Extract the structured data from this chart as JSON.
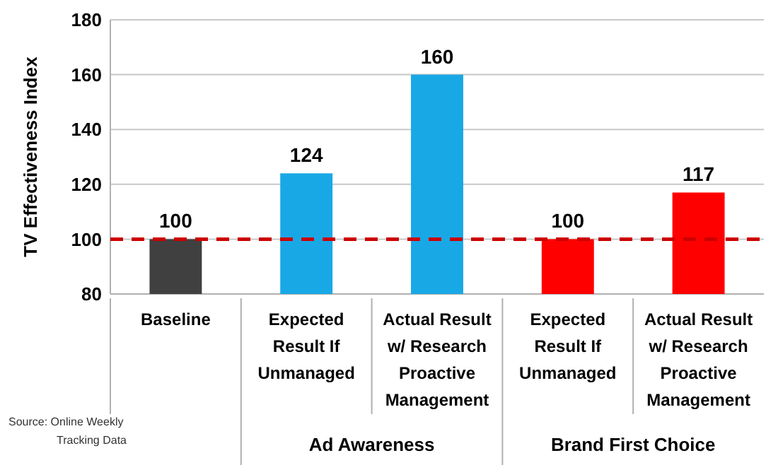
{
  "chart_data": {
    "type": "bar",
    "ylabel": "TV Effectiveness Index",
    "categories": [
      "Baseline",
      "Expected Result If Unmanaged",
      "Actual Result w/ Research Proactive Management",
      "Expected Result If Unmanaged",
      "Actual Result w/ Research Proactive Management"
    ],
    "values": [
      100,
      124,
      160,
      100,
      117
    ],
    "colors": [
      "#404040",
      "#19a8e6",
      "#19a8e6",
      "#ff0000",
      "#ff0000"
    ],
    "ylim": [
      80,
      180
    ],
    "yticks": [
      80,
      100,
      120,
      140,
      160,
      180
    ],
    "grid": "y",
    "data_labels": true,
    "ref_lines": [
      {
        "axis": "y",
        "value": 100,
        "color": "#cc0000",
        "line_style": "dashed"
      }
    ],
    "annotations": [
      "Source: Online Weekly Tracking Data",
      "Ad Awareness",
      "Brand First Choice"
    ]
  }
}
